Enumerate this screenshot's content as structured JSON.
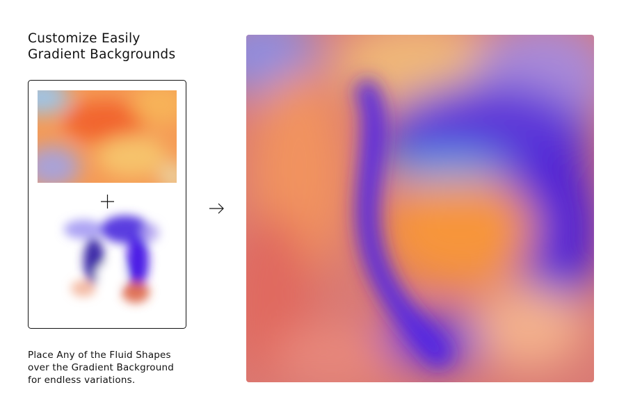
{
  "header": {
    "title_lines": [
      "Customize Easily",
      "Gradient Backgrounds"
    ]
  },
  "caption": {
    "lines": [
      "Place Any of the Fluid Shapes",
      "over the Gradient Background",
      "for endless variations."
    ]
  }
}
